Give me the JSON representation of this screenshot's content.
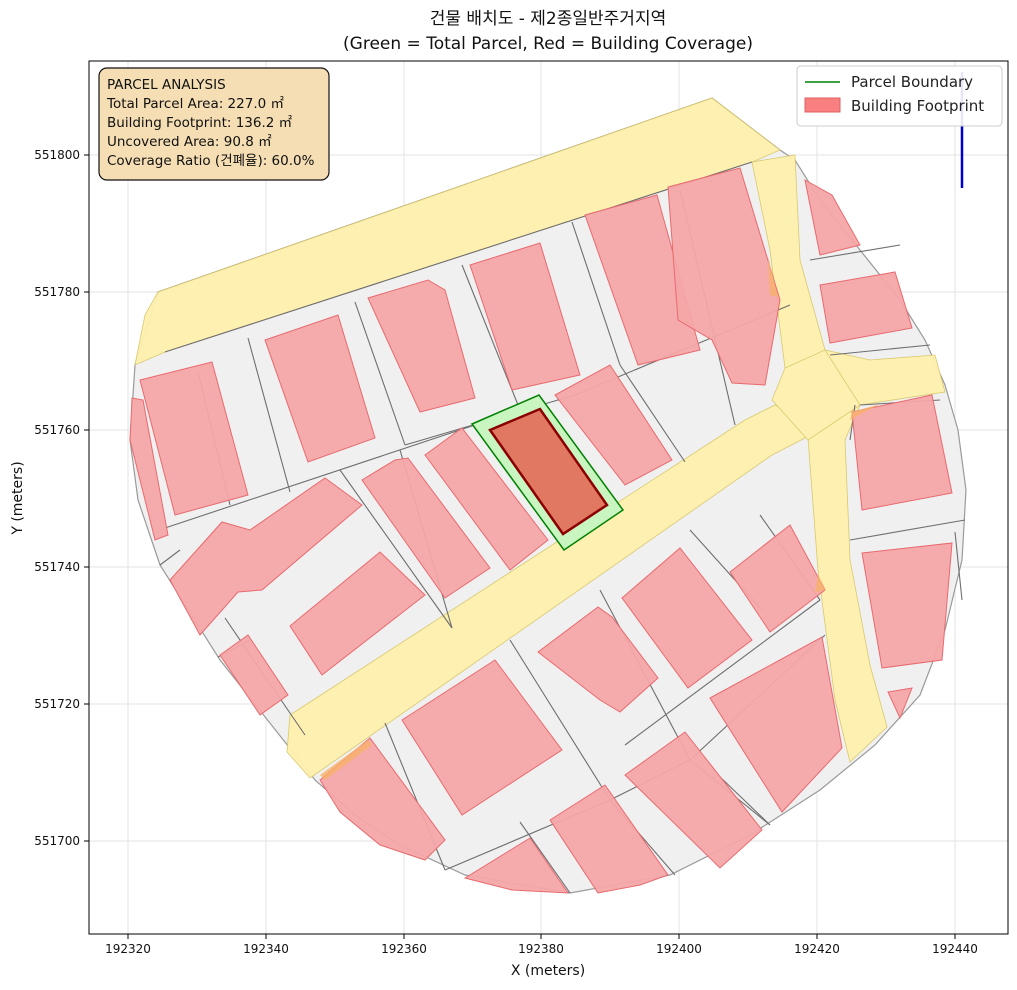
{
  "title": {
    "line1": "건물 배치도 - 제2종일반주거지역",
    "line2": "(Green = Total Parcel, Red = Building Coverage)"
  },
  "axes": {
    "xlabel": "X (meters)",
    "ylabel": "Y (meters)",
    "xlim": [
      192315,
      192448
    ],
    "ylim": [
      551688,
      551814
    ],
    "xticks": [
      "192320",
      "192340",
      "192360",
      "192380",
      "192400",
      "192420",
      "192440"
    ],
    "yticks": [
      "551700",
      "551720",
      "551740",
      "551760",
      "551780",
      "551800"
    ],
    "grid": true
  },
  "info_box": {
    "heading": "PARCEL ANALYSIS",
    "total_parcel": "Total Parcel Area: 227.0 ㎡",
    "building_footprint": "Building Footprint: 136.2 ㎡",
    "uncovered": "Uncovered Area: 90.8 ㎡",
    "coverage_ratio": "Coverage Ratio (건폐율): 60.0%"
  },
  "legend": {
    "placement": "top-right",
    "parcel_boundary": "Parcel Boundary",
    "building_footprint": "Building Footprint"
  },
  "colors": {
    "parcel_green": "#008000",
    "parcel_fill": "#c8f5c0",
    "target_building_fill": "#e07862",
    "target_building_stroke": "#8b0000",
    "building_fill": "#f4a5a7",
    "building_stroke": "#e86a6f",
    "road_fill": "#fff1ad",
    "block_fill": "#f0f0f0",
    "north_arrow": "#0000cc"
  },
  "chart_data": {
    "type": "map",
    "target_parcel": [
      [
        192371,
        551761.5
      ],
      [
        192380,
        551765
      ],
      [
        192392,
        551748.5
      ],
      [
        192383.5,
        551742.5
      ]
    ],
    "target_building": [
      [
        192373,
        551760
      ],
      [
        192380,
        551763
      ],
      [
        192390,
        551749
      ],
      [
        192383.5,
        551744.5
      ]
    ],
    "north_arrow": {
      "x": 192441,
      "y_from": 551795,
      "y_to": 551812
    }
  }
}
